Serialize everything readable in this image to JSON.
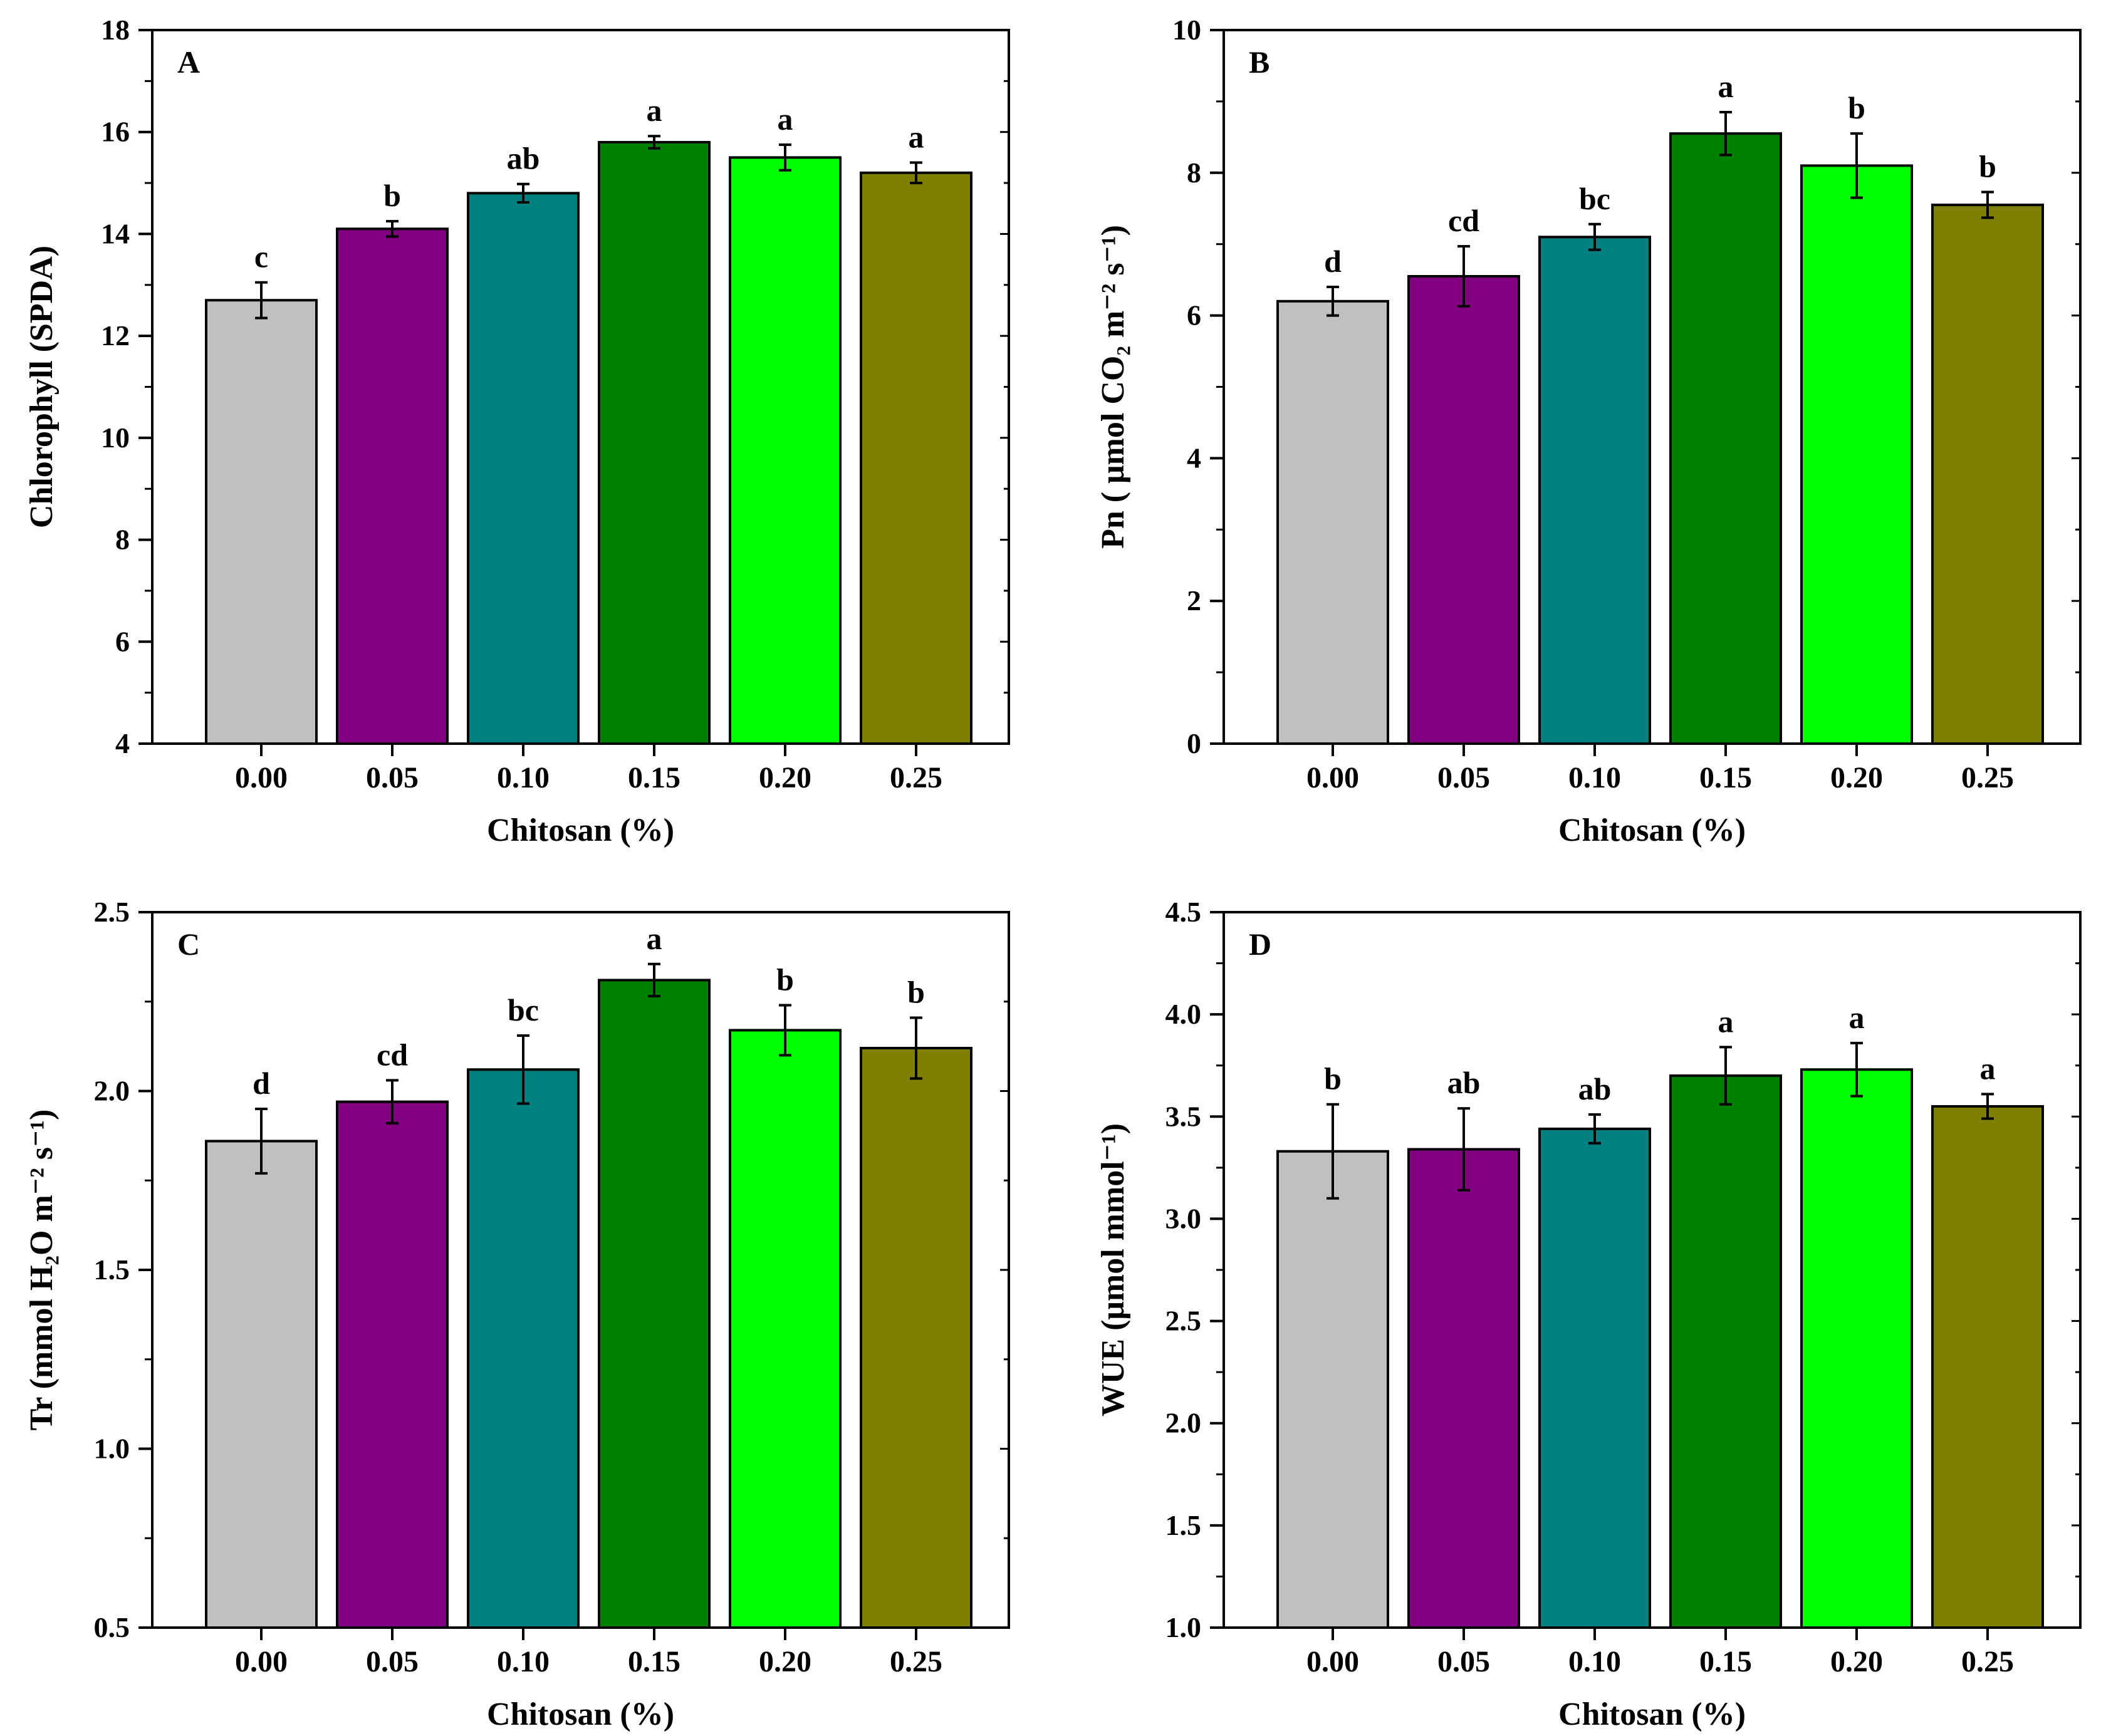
{
  "chart_data": [
    {
      "type": "bar",
      "panel_label": "A",
      "categories": [
        "0.00",
        "0.05",
        "0.10",
        "0.15",
        "0.20",
        "0.25"
      ],
      "values": [
        12.7,
        14.1,
        14.8,
        15.8,
        15.5,
        15.2
      ],
      "errors": [
        0.35,
        0.15,
        0.18,
        0.12,
        0.25,
        0.2
      ],
      "significance": [
        "c",
        "b",
        "ab",
        "a",
        "a",
        "a"
      ],
      "ylim": [
        4,
        18
      ],
      "yticks": [
        "4",
        "6",
        "8",
        "10",
        "12",
        "14",
        "16",
        "18"
      ],
      "ylabel": "Chlorophyll (SPDA)",
      "xlabel": "Chitosan (%)"
    },
    {
      "type": "bar",
      "panel_label": "B",
      "categories": [
        "0.00",
        "0.05",
        "0.10",
        "0.15",
        "0.20",
        "0.25"
      ],
      "values": [
        6.2,
        6.55,
        7.1,
        8.55,
        8.1,
        7.55
      ],
      "errors": [
        0.2,
        0.42,
        0.18,
        0.3,
        0.45,
        0.18
      ],
      "significance": [
        "d",
        "cd",
        "bc",
        "a",
        "b",
        "b"
      ],
      "ylim": [
        0,
        10
      ],
      "yticks": [
        "0",
        "2",
        "4",
        "6",
        "8",
        "10"
      ],
      "ylabel": "Pn ( μmol CO₂ m⁻² s⁻¹)",
      "xlabel": "Chitosan (%)"
    },
    {
      "type": "bar",
      "panel_label": "C",
      "categories": [
        "0.00",
        "0.05",
        "0.10",
        "0.15",
        "0.20",
        "0.25"
      ],
      "values": [
        1.86,
        1.97,
        2.06,
        2.31,
        2.17,
        2.12
      ],
      "errors": [
        0.09,
        0.06,
        0.095,
        0.045,
        0.07,
        0.085
      ],
      "significance": [
        "d",
        "cd",
        "bc",
        "a",
        "b",
        "b"
      ],
      "ylim": [
        0.5,
        2.5
      ],
      "yticks": [
        "0.5",
        "1.0",
        "1.5",
        "2.0",
        "2.5"
      ],
      "ylabel": "Tr (mmol H₂O m⁻² s⁻¹)",
      "xlabel": "Chitosan (%)"
    },
    {
      "type": "bar",
      "panel_label": "D",
      "categories": [
        "0.00",
        "0.05",
        "0.10",
        "0.15",
        "0.20",
        "0.25"
      ],
      "values": [
        3.33,
        3.34,
        3.44,
        3.7,
        3.73,
        3.55
      ],
      "errors": [
        0.23,
        0.2,
        0.07,
        0.14,
        0.13,
        0.06
      ],
      "significance": [
        "b",
        "ab",
        "ab",
        "a",
        "a",
        "a"
      ],
      "ylim": [
        1.0,
        4.5
      ],
      "yticks": [
        "1.0",
        "1.5",
        "2.0",
        "2.5",
        "3.0",
        "3.5",
        "4.0",
        "4.5"
      ],
      "ylabel": "WUE (μmol mmol⁻¹)",
      "xlabel": "Chitosan (%)"
    }
  ],
  "colors": [
    "#c0c0c0",
    "#800080",
    "#008080",
    "#008000",
    "#00ff00",
    "#808000"
  ]
}
